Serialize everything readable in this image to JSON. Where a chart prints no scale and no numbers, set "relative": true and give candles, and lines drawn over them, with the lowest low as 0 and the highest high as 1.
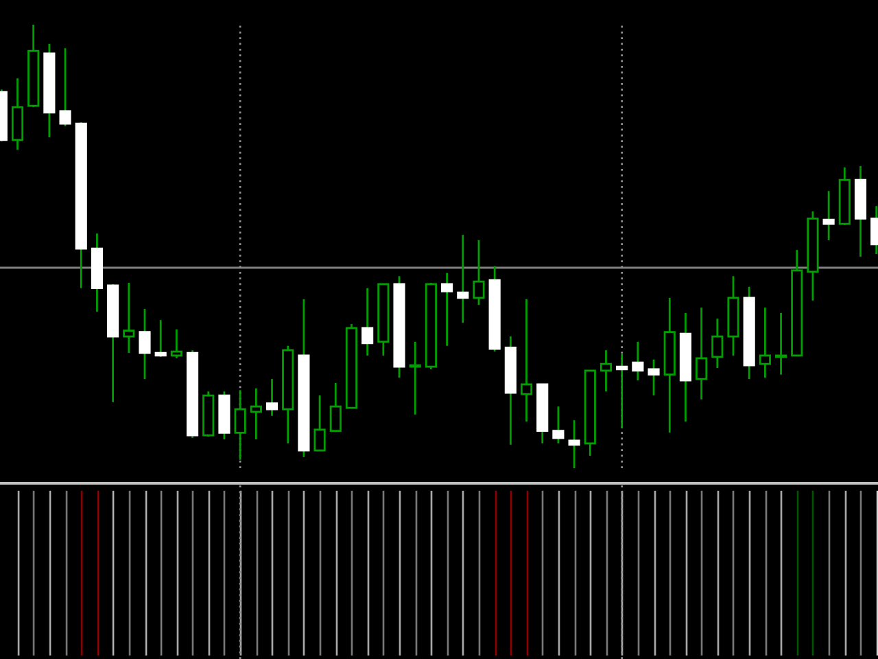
{
  "chart_data": {
    "type": "candlestick",
    "relative": true,
    "categories": [
      null,
      null,
      null,
      null,
      null,
      null,
      null,
      null,
      null,
      null,
      null,
      null,
      null,
      null,
      null,
      null,
      null,
      null,
      null,
      null,
      null,
      null,
      null,
      null,
      null,
      null,
      null,
      null,
      null,
      null,
      null,
      null,
      null,
      null,
      null,
      null,
      null,
      null,
      null,
      null,
      null,
      null,
      null,
      null,
      null,
      null,
      null,
      null,
      null,
      null,
      null,
      null,
      null,
      null,
      null,
      null
    ],
    "ohlc": [
      [
        0.848,
        0.854,
        0.737,
        0.74
      ],
      [
        0.74,
        0.879,
        0.718,
        0.814
      ],
      [
        0.817,
        1.0,
        0.814,
        0.941
      ],
      [
        0.935,
        0.957,
        0.746,
        0.802
      ],
      [
        0.805,
        0.947,
        0.771,
        0.777
      ],
      [
        0.777,
        0.78,
        0.406,
        0.495
      ],
      [
        0.495,
        0.529,
        0.353,
        0.406
      ],
      [
        0.412,
        0.415,
        0.149,
        0.297
      ],
      [
        0.297,
        0.418,
        0.26,
        0.31
      ],
      [
        0.307,
        0.359,
        0.201,
        0.26
      ],
      [
        0.26,
        0.334,
        0.251,
        0.254
      ],
      [
        0.254,
        0.313,
        0.248,
        0.263
      ],
      [
        0.26,
        0.266,
        0.068,
        0.074
      ],
      [
        0.074,
        0.173,
        0.071,
        0.164
      ],
      [
        0.164,
        0.173,
        0.065,
        0.08
      ],
      [
        0.08,
        0.176,
        0.019,
        0.133
      ],
      [
        0.127,
        0.18,
        0.065,
        0.139
      ],
      [
        0.146,
        0.201,
        0.118,
        0.133
      ],
      [
        0.133,
        0.276,
        0.056,
        0.266
      ],
      [
        0.254,
        0.381,
        0.025,
        0.04
      ],
      [
        0.04,
        0.164,
        0.04,
        0.087
      ],
      [
        0.084,
        0.192,
        0.084,
        0.139
      ],
      [
        0.136,
        0.325,
        0.136,
        0.316
      ],
      [
        0.316,
        0.406,
        0.254,
        0.282
      ],
      [
        0.285,
        0.415,
        0.254,
        0.415
      ],
      [
        0.415,
        0.433,
        0.204,
        0.229
      ],
      [
        0.229,
        0.285,
        0.121,
        0.232
      ],
      [
        0.229,
        0.418,
        0.223,
        0.415
      ],
      [
        0.415,
        0.44,
        0.276,
        0.399
      ],
      [
        0.396,
        0.526,
        0.328,
        0.384
      ],
      [
        0.384,
        0.514,
        0.368,
        0.421
      ],
      [
        0.424,
        0.455,
        0.263,
        0.269
      ],
      [
        0.272,
        0.297,
        0.053,
        0.17
      ],
      [
        0.167,
        0.381,
        0.105,
        0.189
      ],
      [
        0.189,
        0.189,
        0.056,
        0.084
      ],
      [
        0.084,
        0.139,
        0.056,
        0.068
      ],
      [
        0.062,
        0.108,
        0.0,
        0.053
      ],
      [
        0.056,
        0.22,
        0.028,
        0.22
      ],
      [
        0.22,
        0.266,
        0.173,
        0.235
      ],
      [
        0.229,
        0.257,
        0.09,
        0.223
      ],
      [
        0.238,
        0.285,
        0.198,
        0.22
      ],
      [
        0.223,
        0.245,
        0.164,
        0.211
      ],
      [
        0.211,
        0.384,
        0.08,
        0.307
      ],
      [
        0.303,
        0.35,
        0.105,
        0.198
      ],
      [
        0.201,
        0.362,
        0.155,
        0.248
      ],
      [
        0.251,
        0.337,
        0.226,
        0.297
      ],
      [
        0.297,
        0.433,
        0.254,
        0.384
      ],
      [
        0.384,
        0.409,
        0.201,
        0.232
      ],
      [
        0.235,
        0.362,
        0.204,
        0.254
      ],
      [
        0.251,
        0.35,
        0.211,
        0.254
      ],
      [
        0.254,
        0.492,
        0.254,
        0.446
      ],
      [
        0.443,
        0.579,
        0.378,
        0.563
      ],
      [
        0.56,
        0.625,
        0.514,
        0.551
      ],
      [
        0.551,
        0.678,
        0.548,
        0.65
      ],
      [
        0.65,
        0.681,
        0.477,
        0.563
      ],
      [
        0.563,
        0.591,
        0.483,
        0.505
      ]
    ],
    "ref_lines": [
      {
        "axis": "y",
        "value": 0.452,
        "color": "#808080"
      }
    ]
  }
}
